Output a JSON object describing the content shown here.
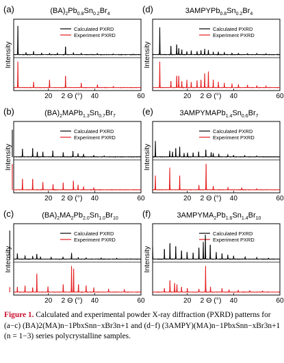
{
  "colors": {
    "calc": "#000000",
    "exp": "#e41a1c",
    "frame": "#000000"
  },
  "chart_data": [
    {
      "type": "line",
      "panel": "(a)",
      "title": "(BA)2Pb0.8Sn0.2Br4",
      "title_parts": [
        [
          "(BA)",
          ""
        ],
        [
          "2",
          "sub"
        ],
        [
          "Pb",
          ""
        ],
        [
          "0.8",
          "sub"
        ],
        [
          "Sn",
          ""
        ],
        [
          "0.2",
          "sub"
        ],
        [
          "Br",
          ""
        ],
        [
          "4",
          "sub"
        ]
      ],
      "xlabel": "2 Θ (°)",
      "ylabel": "Intensity",
      "xlim": [
        5,
        60
      ],
      "xticks": [
        "20",
        "40",
        "60"
      ],
      "legend": [
        "Calculated PXRD",
        "Experiment PXRD"
      ],
      "series": [
        {
          "name": "Calculated PXRD",
          "peaks": [
            [
              6.8,
              1.0
            ],
            [
              10.3,
              0.08
            ],
            [
              13.6,
              0.12
            ],
            [
              17.1,
              0.06
            ],
            [
              20.5,
              0.05
            ],
            [
              23.9,
              0.06
            ],
            [
              27.4,
              0.28
            ],
            [
              30.8,
              0.07
            ],
            [
              34.2,
              0.05
            ],
            [
              41.1,
              0.04
            ],
            [
              48.0,
              0.03
            ]
          ]
        },
        {
          "name": "Experiment PXRD",
          "peaks": [
            [
              6.8,
              1.0
            ],
            [
              13.6,
              0.22
            ],
            [
              20.5,
              0.3
            ],
            [
              27.4,
              0.45
            ],
            [
              34.2,
              0.18
            ],
            [
              41.2,
              0.12
            ],
            [
              48.1,
              0.05
            ]
          ]
        }
      ]
    },
    {
      "type": "line",
      "panel": "(b)",
      "title": "(BA)2MAPb1.3Sn0.7Br7",
      "title_parts": [
        [
          "(BA)",
          ""
        ],
        [
          "2",
          "sub"
        ],
        [
          "MAPb",
          ""
        ],
        [
          "1.3",
          "sub"
        ],
        [
          "Sn",
          ""
        ],
        [
          "0.7",
          "sub"
        ],
        [
          "Br",
          ""
        ],
        [
          "7",
          "sub"
        ]
      ],
      "xlabel": "2 Θ (°)",
      "ylabel": "Intensity",
      "xlim": [
        5,
        60
      ],
      "xticks": [
        "20",
        "40",
        "60"
      ],
      "legend": [
        "Calculated PXRD",
        "Experiment PXRD"
      ],
      "series": [
        {
          "name": "Calculated PXRD",
          "peaks": [
            [
              4.4,
              0.95
            ],
            [
              8.8,
              0.28
            ],
            [
              13.2,
              0.3
            ],
            [
              15.2,
              0.18
            ],
            [
              17.6,
              0.18
            ],
            [
              21.9,
              0.22
            ],
            [
              26.4,
              0.16
            ],
            [
              30.6,
              0.2
            ],
            [
              32.8,
              0.12
            ],
            [
              35.2,
              0.1
            ],
            [
              39.6,
              0.06
            ],
            [
              44.1,
              0.04
            ]
          ]
        },
        {
          "name": "Experiment PXRD",
          "peaks": [
            [
              4.4,
              1.0
            ],
            [
              8.8,
              0.42
            ],
            [
              13.2,
              0.42
            ],
            [
              17.6,
              0.3
            ],
            [
              22.0,
              0.22
            ],
            [
              26.4,
              0.28
            ],
            [
              30.8,
              0.35
            ],
            [
              32.8,
              0.2
            ],
            [
              35.2,
              0.12
            ],
            [
              39.6,
              0.08
            ]
          ]
        }
      ]
    },
    {
      "type": "line",
      "panel": "(c)",
      "title": "(BA)2MA2Pb2.0Sn1.0Br10",
      "title_parts": [
        [
          "(BA)",
          ""
        ],
        [
          "2",
          "sub"
        ],
        [
          "MA",
          ""
        ],
        [
          "2",
          "sub"
        ],
        [
          "Pb",
          ""
        ],
        [
          "2.0",
          "sub"
        ],
        [
          "Sn",
          ""
        ],
        [
          "1.0",
          "sub"
        ],
        [
          "Br",
          ""
        ],
        [
          "10",
          "sub"
        ]
      ],
      "xlabel": "2 Θ (°)",
      "ylabel": "Intensity",
      "xlim": [
        5,
        60
      ],
      "xticks": [
        "20",
        "40",
        "60"
      ],
      "legend": [
        "Calculated PXRD",
        "Experiment PXRD"
      ],
      "series": [
        {
          "name": "Calculated PXRD",
          "peaks": [
            [
              3.3,
              1.0
            ],
            [
              6.6,
              0.2
            ],
            [
              9.9,
              0.12
            ],
            [
              13.2,
              0.1
            ],
            [
              15.0,
              0.18
            ],
            [
              16.6,
              0.08
            ],
            [
              21.2,
              0.07
            ],
            [
              26.3,
              0.08
            ],
            [
              30.0,
              0.22
            ],
            [
              32.9,
              0.06
            ],
            [
              36.3,
              0.05
            ],
            [
              42.8,
              0.04
            ],
            [
              49.5,
              0.03
            ]
          ]
        },
        {
          "name": "Experiment PXRD",
          "peaks": [
            [
              3.3,
              0.2
            ],
            [
              6.6,
              0.2
            ],
            [
              9.9,
              0.25
            ],
            [
              13.2,
              0.18
            ],
            [
              15.0,
              0.7
            ],
            [
              19.8,
              0.22
            ],
            [
              26.4,
              0.3
            ],
            [
              30.0,
              1.0
            ],
            [
              30.9,
              0.9
            ],
            [
              33.0,
              0.3
            ],
            [
              36.3,
              0.25
            ],
            [
              39.6,
              0.18
            ],
            [
              46.0,
              0.12
            ],
            [
              52.8,
              0.1
            ]
          ]
        }
      ]
    },
    {
      "type": "line",
      "panel": "(d)",
      "title": "3AMPYPb0.8Sn0.2Br4",
      "title_parts": [
        [
          "3AMPYPb",
          ""
        ],
        [
          "0.8",
          "sub"
        ],
        [
          "Sn",
          ""
        ],
        [
          "0.2",
          "sub"
        ],
        [
          "Br",
          ""
        ],
        [
          "4",
          "sub"
        ]
      ],
      "xlabel": "2 Θ (°)",
      "ylabel": "Intensity",
      "xlim": [
        5,
        60
      ],
      "xticks": [
        "20",
        "40",
        "60"
      ],
      "legend": [
        "Calculated PXRD",
        "Experiment PXRD"
      ],
      "series": [
        {
          "name": "Calculated PXRD",
          "peaks": [
            [
              8.1,
              0.95
            ],
            [
              12.9,
              0.3
            ],
            [
              15.4,
              0.35
            ],
            [
              16.3,
              0.22
            ],
            [
              17.6,
              0.18
            ],
            [
              19.8,
              0.12
            ],
            [
              21.7,
              0.14
            ],
            [
              24.2,
              0.12
            ],
            [
              25.9,
              0.15
            ],
            [
              27.5,
              0.2
            ],
            [
              29.1,
              0.16
            ],
            [
              31.2,
              0.1
            ],
            [
              33.4,
              0.1
            ],
            [
              36.0,
              0.08
            ],
            [
              39.3,
              0.06
            ],
            [
              42.1,
              0.05
            ],
            [
              46.0,
              0.04
            ],
            [
              50.0,
              0.04
            ],
            [
              54.0,
              0.03
            ]
          ]
        },
        {
          "name": "Experiment PXRD",
          "peaks": [
            [
              8.1,
              1.0
            ],
            [
              12.9,
              0.25
            ],
            [
              15.4,
              0.45
            ],
            [
              16.3,
              0.45
            ],
            [
              17.6,
              0.25
            ],
            [
              19.8,
              0.3
            ],
            [
              21.7,
              0.22
            ],
            [
              24.2,
              0.28
            ],
            [
              25.9,
              0.3
            ],
            [
              27.5,
              0.55
            ],
            [
              29.1,
              0.62
            ],
            [
              31.2,
              0.3
            ],
            [
              33.4,
              0.22
            ],
            [
              36.0,
              0.18
            ],
            [
              39.3,
              0.15
            ],
            [
              42.1,
              0.12
            ],
            [
              46.0,
              0.1
            ],
            [
              50.0,
              0.08
            ],
            [
              54.0,
              0.06
            ]
          ]
        }
      ]
    },
    {
      "type": "line",
      "panel": "(e)",
      "title": "3AMPYMAPb1.4Sn0.6Br7",
      "title_parts": [
        [
          "3AMPYMAPb",
          ""
        ],
        [
          "1.4",
          "sub"
        ],
        [
          "Sn",
          ""
        ],
        [
          "0.6",
          "sub"
        ],
        [
          "Br",
          ""
        ],
        [
          "7",
          "sub"
        ]
      ],
      "xlabel": "2 Θ (°)",
      "ylabel": "Intensity",
      "xlim": [
        5,
        60
      ],
      "xticks": [
        "20",
        "40",
        "60"
      ],
      "legend": [
        "Calculated PXRD",
        "Experiment PXRD"
      ],
      "series": [
        {
          "name": "Calculated PXRD",
          "peaks": [
            [
              6.2,
              0.55
            ],
            [
              12.4,
              0.22
            ],
            [
              13.6,
              0.18
            ],
            [
              15.0,
              0.3
            ],
            [
              16.7,
              0.35
            ],
            [
              18.6,
              0.12
            ],
            [
              20.1,
              0.15
            ],
            [
              22.5,
              0.15
            ],
            [
              24.9,
              0.18
            ],
            [
              28.0,
              0.25
            ],
            [
              30.3,
              0.16
            ],
            [
              31.2,
              0.12
            ],
            [
              33.6,
              0.1
            ],
            [
              37.5,
              0.08
            ],
            [
              40.0,
              0.06
            ],
            [
              44.8,
              0.05
            ],
            [
              50.0,
              0.04
            ]
          ]
        },
        {
          "name": "Experiment PXRD",
          "peaks": [
            [
              6.2,
              0.55
            ],
            [
              12.4,
              0.85
            ],
            [
              16.7,
              0.55
            ],
            [
              25.0,
              0.18
            ],
            [
              28.1,
              1.0
            ],
            [
              31.2,
              0.15
            ],
            [
              37.6,
              0.1
            ],
            [
              43.5,
              0.08
            ],
            [
              50.0,
              0.05
            ]
          ]
        }
      ]
    },
    {
      "type": "line",
      "panel": "(f)",
      "title": "3AMPYMA2Pb1.6Sn1.4Br10",
      "title_parts": [
        [
          "3AMPYMA",
          ""
        ],
        [
          "2",
          "sub"
        ],
        [
          "Pb",
          ""
        ],
        [
          "1.6",
          "sub"
        ],
        [
          "Sn",
          ""
        ],
        [
          "1.4",
          "sub"
        ],
        [
          "Br",
          ""
        ],
        [
          "10",
          "sub"
        ]
      ],
      "xlabel": "2 Θ (°)",
      "ylabel": "Intensity",
      "xlim": [
        5,
        60
      ],
      "xticks": [
        "20",
        "40",
        "60"
      ],
      "legend": [
        "Calculated PXRD",
        "Experiment PXRD"
      ],
      "series": [
        {
          "name": "Calculated PXRD",
          "peaks": [
            [
              5.0,
              0.45
            ],
            [
              10.1,
              0.35
            ],
            [
              12.5,
              0.55
            ],
            [
              15.0,
              0.45
            ],
            [
              17.5,
              0.3
            ],
            [
              19.9,
              0.25
            ],
            [
              22.5,
              0.22
            ],
            [
              25.0,
              0.4
            ],
            [
              26.9,
              0.6
            ],
            [
              27.8,
              0.85
            ],
            [
              29.9,
              0.5
            ],
            [
              32.5,
              0.25
            ],
            [
              35.0,
              0.2
            ],
            [
              37.5,
              0.15
            ],
            [
              40.0,
              0.12
            ],
            [
              45.0,
              0.08
            ],
            [
              50.0,
              0.06
            ],
            [
              55.0,
              0.04
            ]
          ]
        },
        {
          "name": "Experiment PXRD",
          "peaks": [
            [
              10.1,
              0.15
            ],
            [
              12.5,
              0.45
            ],
            [
              14.5,
              0.35
            ],
            [
              15.5,
              0.3
            ],
            [
              17.5,
              0.2
            ],
            [
              20.0,
              0.15
            ],
            [
              25.0,
              0.12
            ],
            [
              27.9,
              1.0
            ],
            [
              30.0,
              0.2
            ],
            [
              35.0,
              0.15
            ],
            [
              38.0,
              0.1
            ],
            [
              42.0,
              0.08
            ],
            [
              47.0,
              0.06
            ],
            [
              52.5,
              0.05
            ]
          ]
        }
      ]
    }
  ],
  "caption": {
    "figure_label": "Figure 1.",
    "text": " Calculated and experimental powder X-ray diffraction (PXRD) patterns for (a−c) (BA)2(MA)n−1PbxSnn−xBr3n+1 and (d−f) (3AMPY)(MA)n−1PbxSnn−xBr3n+1 (n = 1−3) series polycrystalline samples."
  }
}
